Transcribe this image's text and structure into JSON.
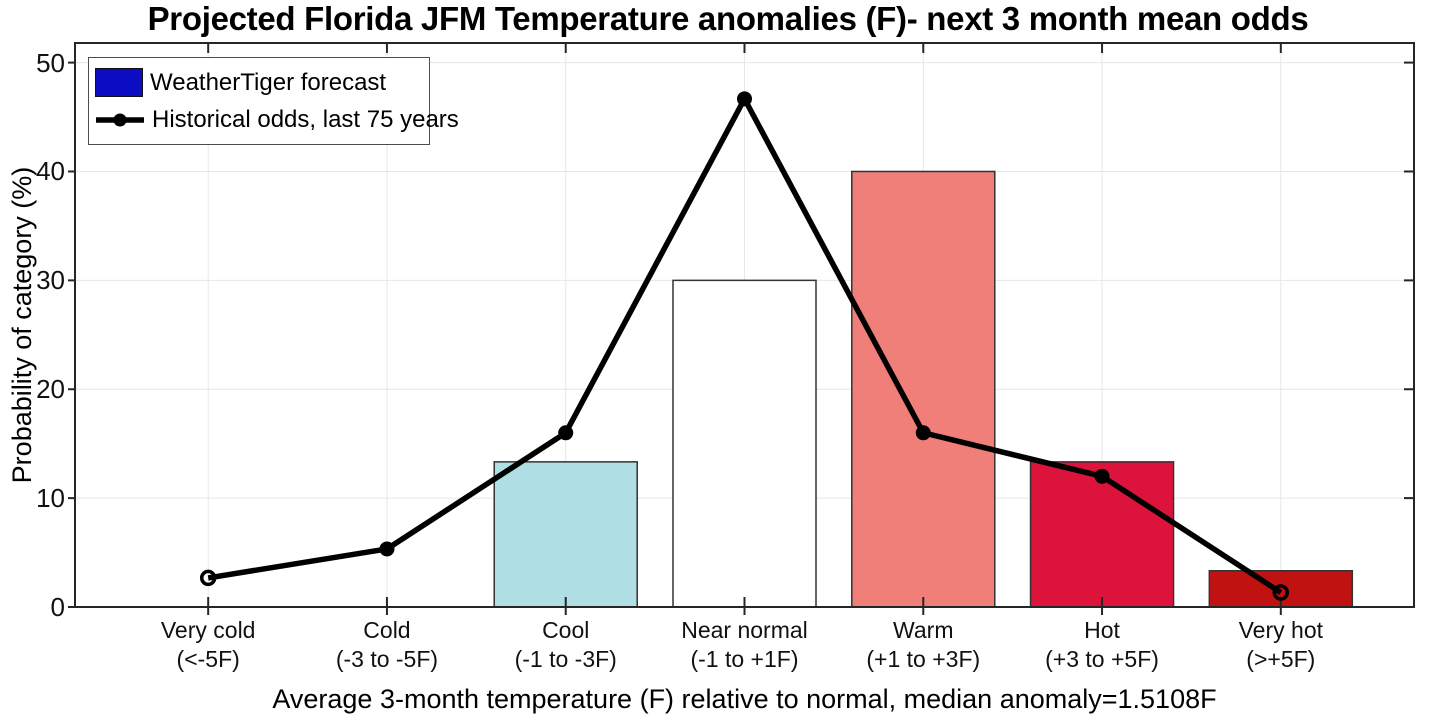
{
  "chart_data": {
    "type": "bar+line",
    "title": "Projected Florida JFM Temperature anomalies (F)- next 3 month mean odds",
    "xlabel": "Average 3-month temperature (F) relative to normal, median anomaly=1.5108F",
    "ylabel": "Probability of category (%)",
    "ylim": [
      0,
      51.8
    ],
    "yticks": [
      0,
      10,
      20,
      30,
      40,
      50
    ],
    "grid": true,
    "legend_position": "top-left",
    "categories": [
      {
        "name": "Very cold",
        "range": "(<-5F)"
      },
      {
        "name": "Cold",
        "range": "(-3 to -5F)"
      },
      {
        "name": "Cool",
        "range": "(-1 to -3F)"
      },
      {
        "name": "Near normal",
        "range": "(-1 to +1F)"
      },
      {
        "name": "Warm",
        "range": "(+1 to +3F)"
      },
      {
        "name": "Hot",
        "range": "(+3 to +5F)"
      },
      {
        "name": "Very hot",
        "range": "(>+5F)"
      }
    ],
    "series": [
      {
        "name": "WeatherTiger forecast",
        "type": "bar",
        "values": [
          0,
          0,
          13.33,
          30,
          40,
          13.33,
          3.33
        ],
        "colors": [
          "#0C0CC2",
          "#0C0CC2",
          "#AFDEE4",
          "#FFFFFF",
          "#EF7F78",
          "#DC143C",
          "#C11212"
        ],
        "bar_border_color": "#333333"
      },
      {
        "name": "Historical odds, last 75 years",
        "type": "line",
        "values": [
          2.67,
          5.33,
          16,
          46.67,
          16,
          12,
          1.33
        ],
        "color": "#000000",
        "marker": "filled-circle, open-circle at endpoints"
      }
    ],
    "colors": {
      "legend_swatch_blue": "#0C0CC2",
      "frame": "#262626",
      "gridline": "#E7E7E7"
    }
  }
}
